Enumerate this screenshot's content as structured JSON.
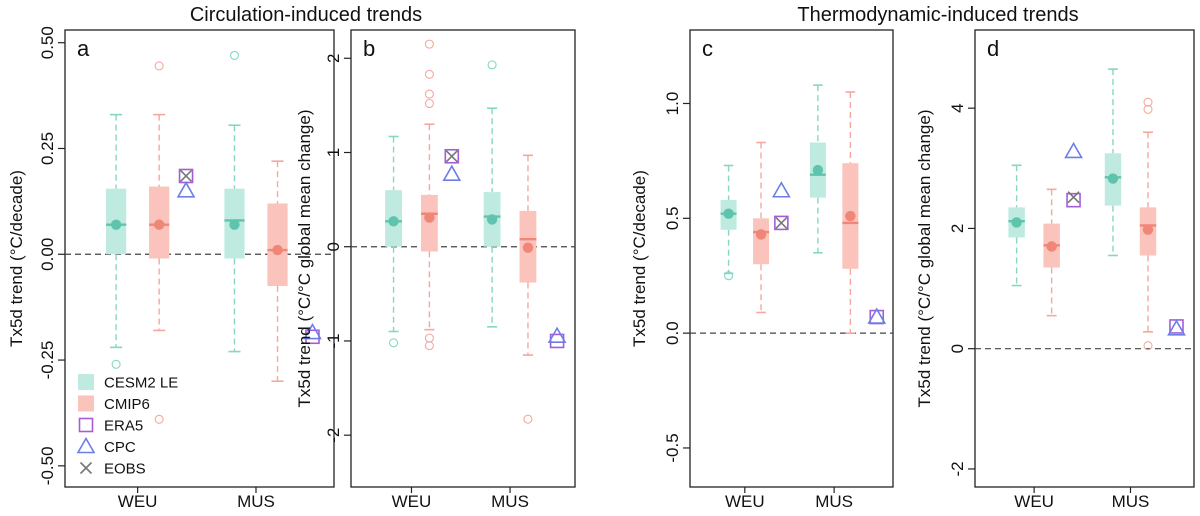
{
  "figure": {
    "group_titles": [
      "Circulation-induced trends",
      "Thermodynamic-induced trends"
    ],
    "colors": {
      "cesm": "#86d6c4",
      "cmip": "#f6a79e",
      "cesm_box": "#bfeae0",
      "cmip_box": "#fac3bb",
      "era5": "#a45cd8",
      "cpc": "#6b7fe6",
      "eobs": "#777777",
      "zero_line": "#444444"
    },
    "legend": [
      {
        "label": "CESM2 LE",
        "marker": "cesm-box"
      },
      {
        "label": "CMIP6",
        "marker": "cmip-box"
      },
      {
        "label": "ERA5",
        "marker": "square"
      },
      {
        "label": "CPC",
        "marker": "triangle"
      },
      {
        "label": "EOBS",
        "marker": "cross"
      }
    ]
  },
  "chart_data": [
    {
      "type": "box",
      "panel": "a",
      "ylabel": "Tx5d trend (°C/decade)",
      "categories": [
        "WEU",
        "MUS"
      ],
      "ylim": [
        -0.55,
        0.53
      ],
      "yticks": [
        -0.5,
        -0.25,
        0.0,
        0.25,
        0.5
      ],
      "ytick_labels": [
        "-0.50",
        "-0.25",
        "0.00",
        "0.25",
        "0.50"
      ],
      "series": [
        {
          "name": "CESM2 LE",
          "stats": [
            {
              "low": -0.22,
              "q1": 0.0,
              "median": 0.07,
              "q3": 0.155,
              "high": 0.33,
              "mean": 0.07,
              "outliers": [
                -0.26
              ]
            },
            {
              "low": -0.23,
              "q1": -0.01,
              "median": 0.08,
              "q3": 0.155,
              "high": 0.305,
              "mean": 0.07,
              "outliers": [
                0.47
              ]
            }
          ]
        },
        {
          "name": "CMIP6",
          "stats": [
            {
              "low": -0.18,
              "q1": -0.01,
              "median": 0.07,
              "q3": 0.16,
              "high": 0.33,
              "mean": 0.07,
              "outliers": [
                0.445,
                -0.39
              ]
            },
            {
              "low": -0.3,
              "q1": -0.075,
              "median": 0.01,
              "q3": 0.12,
              "high": 0.22,
              "mean": 0.01,
              "outliers": []
            }
          ]
        }
      ],
      "observations": {
        "ERA5": [
          0.185,
          -0.195
        ],
        "CPC": [
          0.15,
          -0.185
        ],
        "EOBS": [
          0.185,
          null
        ]
      }
    },
    {
      "type": "box",
      "panel": "b",
      "ylabel": "Tx5d trend (°C/°C global mean change)",
      "categories": [
        "WEU",
        "MUS"
      ],
      "ylim": [
        -2.55,
        2.3
      ],
      "yticks": [
        -2,
        -1,
        0,
        1,
        2
      ],
      "ytick_labels": [
        "-2",
        "-1",
        "0",
        "1",
        "2"
      ],
      "series": [
        {
          "name": "CESM2 LE",
          "stats": [
            {
              "low": -0.9,
              "q1": 0.0,
              "median": 0.27,
              "q3": 0.6,
              "high": 1.17,
              "mean": 0.27,
              "outliers": [
                -1.02
              ]
            },
            {
              "low": -0.85,
              "q1": 0.0,
              "median": 0.32,
              "q3": 0.58,
              "high": 1.47,
              "mean": 0.29,
              "outliers": [
                1.93
              ]
            }
          ]
        },
        {
          "name": "CMIP6",
          "stats": [
            {
              "low": -0.88,
              "q1": -0.05,
              "median": 0.35,
              "q3": 0.55,
              "high": 1.3,
              "mean": 0.31,
              "outliers": [
                2.15,
                1.83,
                1.62,
                1.52,
                -0.97,
                -1.05
              ]
            },
            {
              "low": -1.15,
              "q1": -0.38,
              "median": 0.08,
              "q3": 0.38,
              "high": 0.97,
              "mean": -0.01,
              "outliers": [
                -1.83
              ]
            }
          ]
        }
      ],
      "observations": {
        "ERA5": [
          0.96,
          -1.0
        ],
        "CPC": [
          0.77,
          -0.95
        ],
        "EOBS": [
          0.96,
          null
        ]
      }
    },
    {
      "type": "box",
      "panel": "c",
      "ylabel": "Tx5d trend (°C/decade)",
      "categories": [
        "WEU",
        "MUS"
      ],
      "ylim": [
        -0.67,
        1.32
      ],
      "yticks": [
        -0.5,
        0.0,
        0.5,
        1.0
      ],
      "ytick_labels": [
        "-0.5",
        "0.0",
        "0.5",
        "1.0"
      ],
      "series": [
        {
          "name": "CESM2 LE",
          "stats": [
            {
              "low": 0.26,
              "q1": 0.45,
              "median": 0.52,
              "q3": 0.58,
              "high": 0.73,
              "mean": 0.52,
              "outliers": [
                0.25
              ]
            },
            {
              "low": 0.35,
              "q1": 0.59,
              "median": 0.69,
              "q3": 0.83,
              "high": 1.08,
              "mean": 0.71,
              "outliers": []
            }
          ]
        },
        {
          "name": "CMIP6",
          "stats": [
            {
              "low": 0.09,
              "q1": 0.3,
              "median": 0.44,
              "q3": 0.5,
              "high": 0.83,
              "mean": 0.43,
              "outliers": []
            },
            {
              "low": 0.0,
              "q1": 0.28,
              "median": 0.48,
              "q3": 0.74,
              "high": 1.05,
              "mean": 0.51,
              "outliers": []
            }
          ]
        }
      ],
      "observations": {
        "ERA5": [
          0.48,
          0.07
        ],
        "CPC": [
          0.62,
          0.07
        ],
        "EOBS": [
          0.48,
          null
        ]
      }
    },
    {
      "type": "box",
      "panel": "d",
      "ylabel": "Tx5d trend (°C/°C global mean change)",
      "categories": [
        "WEU",
        "MUS"
      ],
      "ylim": [
        -2.3,
        5.3
      ],
      "yticks": [
        -2,
        0,
        2,
        4
      ],
      "ytick_labels": [
        "-2",
        "0",
        "2",
        "4"
      ],
      "series": [
        {
          "name": "CESM2 LE",
          "stats": [
            {
              "low": 1.05,
              "q1": 1.85,
              "median": 2.12,
              "q3": 2.35,
              "high": 3.05,
              "mean": 2.1,
              "outliers": []
            },
            {
              "low": 1.55,
              "q1": 2.38,
              "median": 2.85,
              "q3": 3.25,
              "high": 4.65,
              "mean": 2.83,
              "outliers": []
            }
          ]
        },
        {
          "name": "CMIP6",
          "stats": [
            {
              "low": 0.55,
              "q1": 1.35,
              "median": 1.72,
              "q3": 2.08,
              "high": 2.65,
              "mean": 1.7,
              "outliers": []
            },
            {
              "low": 0.28,
              "q1": 1.55,
              "median": 2.05,
              "q3": 2.35,
              "high": 3.6,
              "mean": 1.98,
              "outliers": [
                4.1,
                3.98,
                0.05
              ]
            }
          ]
        }
      ],
      "observations": {
        "ERA5": [
          2.47,
          0.37
        ],
        "CPC": [
          3.28,
          0.33
        ],
        "EOBS": [
          2.52,
          null
        ]
      }
    }
  ]
}
